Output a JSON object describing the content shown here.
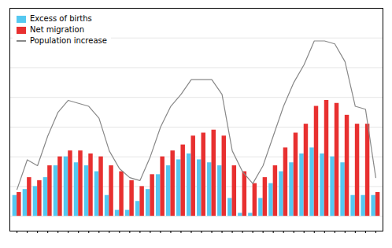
{
  "chart_data": {
    "type": "bar",
    "categories": [
      null,
      null,
      null,
      null,
      null,
      null,
      null,
      null,
      null,
      null,
      null,
      null,
      null,
      null,
      null,
      null,
      null,
      null,
      null,
      null,
      null,
      null,
      null,
      null,
      null,
      null,
      null,
      null,
      null,
      null,
      null,
      null,
      null,
      null,
      null,
      null
    ],
    "series": [
      {
        "name": "Excess of births",
        "type": "bar",
        "color": "#55C8F0",
        "values": [
          700,
          900,
          1000,
          1300,
          1700,
          2000,
          1800,
          1700,
          1500,
          700,
          200,
          200,
          500,
          900,
          1400,
          1700,
          1900,
          2100,
          1900,
          1800,
          1700,
          600,
          100,
          100,
          600,
          1100,
          1500,
          1800,
          2100,
          2300,
          2100,
          2000,
          1800,
          700,
          700,
          700
        ]
      },
      {
        "name": "Net migration",
        "type": "bar",
        "color": "#E83030",
        "values": [
          800,
          1300,
          1200,
          1700,
          2000,
          2200,
          2200,
          2100,
          2000,
          1700,
          1500,
          1200,
          1000,
          1400,
          2000,
          2200,
          2400,
          2700,
          2800,
          2900,
          2700,
          1700,
          1500,
          1100,
          1300,
          1700,
          2300,
          2800,
          3100,
          3700,
          3900,
          3800,
          3400,
          3100,
          3100,
          800
        ]
      },
      {
        "name": "Population increase",
        "type": "line",
        "color": "#888888",
        "values": [
          900,
          1900,
          1700,
          2700,
          3500,
          3900,
          3800,
          3700,
          3300,
          2200,
          1600,
          1300,
          1200,
          2000,
          3000,
          3700,
          4100,
          4600,
          4600,
          4600,
          4100,
          2200,
          1500,
          1100,
          1700,
          2700,
          3700,
          4500,
          5100,
          5900,
          5900,
          5800,
          5200,
          3700,
          3600,
          1300
        ]
      }
    ],
    "ylim": [
      -500,
      7000
    ],
    "yticks": [
      0,
      1000,
      2000,
      3000,
      4000,
      5000,
      6000,
      7000
    ],
    "grid": true,
    "legend": "upper left",
    "tick_labels": false
  }
}
